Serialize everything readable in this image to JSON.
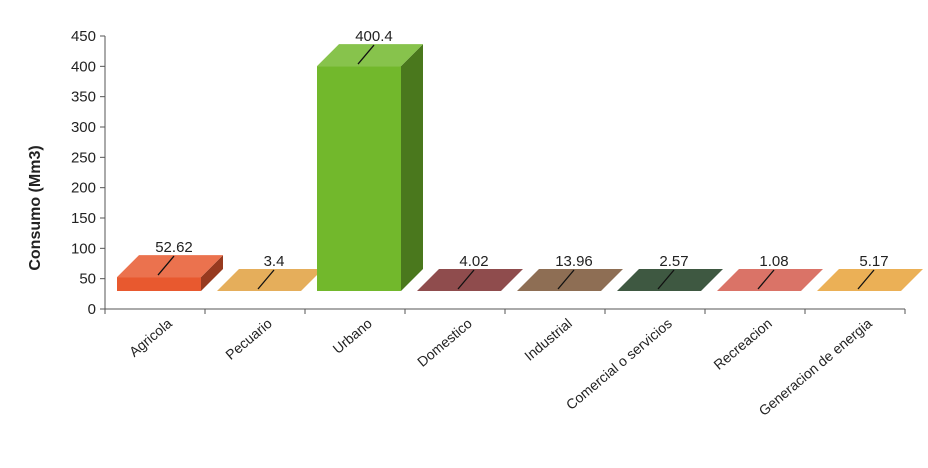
{
  "chart_data": {
    "type": "bar",
    "style": "3d",
    "ylabel": "Consumo (Mm3)",
    "xlabel": "",
    "ylim": [
      0,
      450
    ],
    "yticks": [
      0,
      50,
      100,
      150,
      200,
      250,
      300,
      350,
      400,
      450
    ],
    "categories": [
      "Agricola",
      "Pecuario",
      "Urbano",
      "Domestico",
      "Industrial",
      "Comercial o servicios",
      "Recreacion",
      "Generacion de energia"
    ],
    "values": [
      52.62,
      3.4,
      400.4,
      4.02,
      13.96,
      2.57,
      1.08,
      5.17
    ],
    "data_labels": [
      "52.62",
      "3.4",
      "400.4",
      "4.02",
      "13.96",
      "2.57",
      "1.08",
      "5.17"
    ],
    "colors": [
      "#e8592f",
      "#e0a03e",
      "#72b82c",
      "#7b2c2e",
      "#7a5436",
      "#1c3a20",
      "#d35a4c",
      "#e8a238"
    ],
    "grid": false,
    "legend": "none"
  }
}
